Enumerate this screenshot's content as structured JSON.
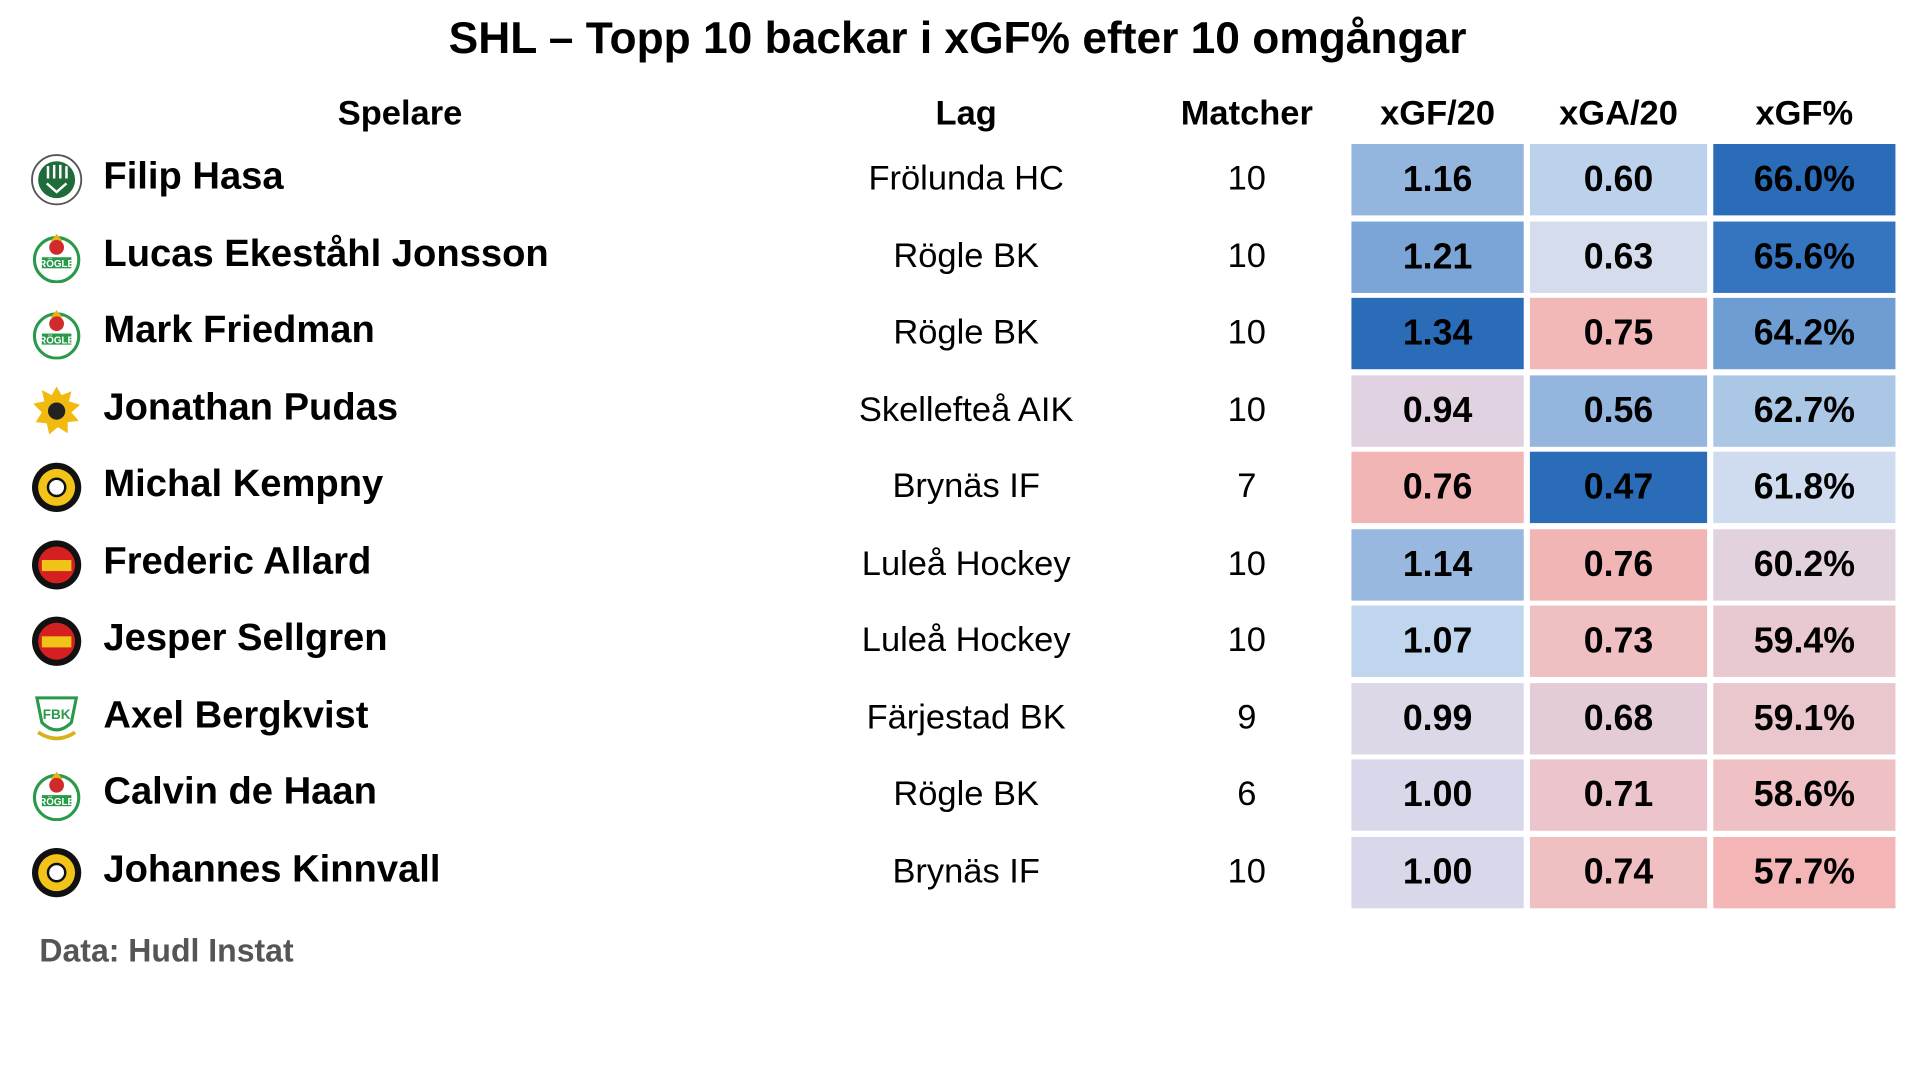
{
  "title": "SHL – Topp 10 backar i xGF% efter 10 omgångar",
  "headers": {
    "player": "Spelare",
    "team": "Lag",
    "games": "Matcher",
    "xgf20": "xGF/20",
    "xga20": "xGA/20",
    "xgfpct": "xGF%"
  },
  "rows": [
    {
      "player": "Filip Hasa",
      "team": "Frölunda HC",
      "logo": "frolunda",
      "games": "10",
      "xgf20": "1.16",
      "xga20": "0.60",
      "xgfpct": "66.0%",
      "colors": [
        "#93b5de",
        "#bcd2ec",
        "#2b6cb8"
      ]
    },
    {
      "player": "Lucas Ekeståhl Jonsson",
      "team": "Rögle BK",
      "logo": "rogle",
      "games": "10",
      "xgf20": "1.21",
      "xga20": "0.63",
      "xgfpct": "65.6%",
      "colors": [
        "#7aa5d6",
        "#d5dcec",
        "#3575bf"
      ]
    },
    {
      "player": "Mark Friedman",
      "team": "Rögle BK",
      "logo": "rogle",
      "games": "10",
      "xgf20": "1.34",
      "xga20": "0.75",
      "xgfpct": "64.2%",
      "colors": [
        "#2b6cb8",
        "#f2b8b8",
        "#6d9dd3"
      ]
    },
    {
      "player": "Jonathan Pudas",
      "team": "Skellefteå AIK",
      "logo": "skelleftea",
      "games": "10",
      "xgf20": "0.94",
      "xga20": "0.56",
      "xgfpct": "62.7%",
      "colors": [
        "#e0d2e0",
        "#93b5de",
        "#abc7e6"
      ]
    },
    {
      "player": "Michal Kempny",
      "team": "Brynäs IF",
      "logo": "brynas",
      "games": "7",
      "xgf20": "0.76",
      "xga20": "0.47",
      "xgfpct": "61.8%",
      "colors": [
        "#f2b5b5",
        "#2b6cb8",
        "#cfdcf0"
      ]
    },
    {
      "player": "Frederic Allard",
      "team": "Luleå Hockey",
      "logo": "lulea",
      "games": "10",
      "xgf20": "1.14",
      "xga20": "0.76",
      "xgfpct": "60.2%",
      "colors": [
        "#98b8df",
        "#f2b5b5",
        "#e2d2de"
      ]
    },
    {
      "player": "Jesper Sellgren",
      "team": "Luleå Hockey",
      "logo": "lulea",
      "games": "10",
      "xgf20": "1.07",
      "xga20": "0.73",
      "xgfpct": "59.4%",
      "colors": [
        "#c0d5ee",
        "#f0bfc2",
        "#e9c9d0"
      ]
    },
    {
      "player": "Axel Bergkvist",
      "team": "Färjestad BK",
      "logo": "farjestad",
      "games": "9",
      "xgf20": "0.99",
      "xga20": "0.68",
      "xgfpct": "59.1%",
      "colors": [
        "#dcd8e8",
        "#e3ccd8",
        "#eac6cd"
      ]
    },
    {
      "player": "Calvin de Haan",
      "team": "Rögle BK",
      "logo": "rogle",
      "games": "6",
      "xgf20": "1.00",
      "xga20": "0.71",
      "xgfpct": "58.6%",
      "colors": [
        "#d8d8ea",
        "#ebc5cb",
        "#efc0c4"
      ]
    },
    {
      "player": "Johannes Kinnvall",
      "team": "Brynäs IF",
      "logo": "brynas",
      "games": "10",
      "xgf20": "1.00",
      "xga20": "0.74",
      "xgfpct": "57.7%",
      "colors": [
        "#d8d8ea",
        "#f0bfc2",
        "#f3b5b5"
      ]
    }
  ],
  "footer": "Data: Hudl Instat"
}
